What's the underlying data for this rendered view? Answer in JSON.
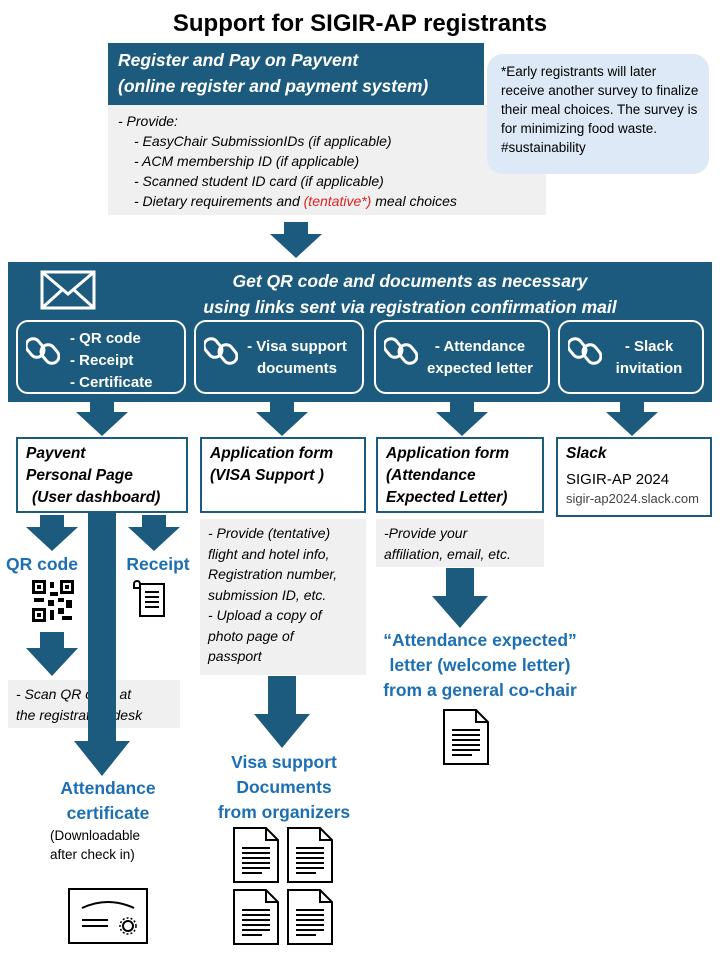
{
  "title": "Support for SIGIR-AP registrants",
  "register": {
    "heading_line1": "Register and Pay on Payvent",
    "heading_line2": "(online register and payment system)",
    "provide_label": "- Provide:",
    "items": [
      "- EasyChair SubmissionIDs (if applicable)",
      "- ACM membership ID (if applicable)",
      "- Scanned student ID card (if applicable)"
    ],
    "dietary_prefix": "- Dietary requirements and ",
    "dietary_highlight": "(tentative*)",
    "dietary_suffix": " meal choices"
  },
  "bubble": {
    "text": "*Early registrants will later receive another survey to finalize their meal choices. The survey is for minimizing food waste. #sustainability"
  },
  "confirmation": {
    "line1": "Get QR code and documents as necessary",
    "line2": "using links sent via registration confirmation mail"
  },
  "links": [
    {
      "lines": [
        "- QR code",
        "- Receipt",
        "- Certificate"
      ]
    },
    {
      "lines": [
        "- Visa support",
        "documents"
      ]
    },
    {
      "lines": [
        "- Attendance",
        "expected letter"
      ]
    },
    {
      "lines": [
        "- Slack",
        "invitation"
      ]
    }
  ],
  "stages": {
    "payvent": {
      "line1": "Payvent",
      "line2": "Personal Page",
      "line3": "(User dashboard)"
    },
    "visa": {
      "line1": "Application form",
      "line2": "(VISA Support )"
    },
    "attendance": {
      "line1": "Application form",
      "line2": "(Attendance",
      "line3": "Expected  Letter)"
    },
    "slack": {
      "title": "Slack",
      "workspace": "SIGIR-AP 2024",
      "url": "sigir-ap2024.slack.com"
    }
  },
  "notes": {
    "visa": [
      "- Provide (tentative)",
      "flight and hotel info,",
      "Registration number,",
      "submission ID, etc.",
      "- Upload a copy of",
      "photo page of",
      "passport"
    ],
    "attendance": [
      "-Provide your",
      "affiliation, email, etc."
    ],
    "scan": [
      "- Scan QR code at",
      "the registration desk"
    ]
  },
  "outputs": {
    "qr_label": "QR code",
    "receipt_label": "Receipt",
    "certificate_line1": "Attendance",
    "certificate_line2": "certificate",
    "certificate_note1": "(Downloadable",
    "certificate_note2": "after check in)",
    "visa_docs": [
      "Visa support",
      "Documents",
      "from organizers"
    ],
    "letter": [
      "“Attendance expected”",
      "letter (welcome letter)",
      "from a general co-chair"
    ]
  },
  "colors": {
    "primary": "#1d5b7e",
    "bubble": "#dde9f6",
    "note_bg": "#f0f0f0",
    "accent_text": "#1d6fb3",
    "highlight": "#e02020"
  }
}
